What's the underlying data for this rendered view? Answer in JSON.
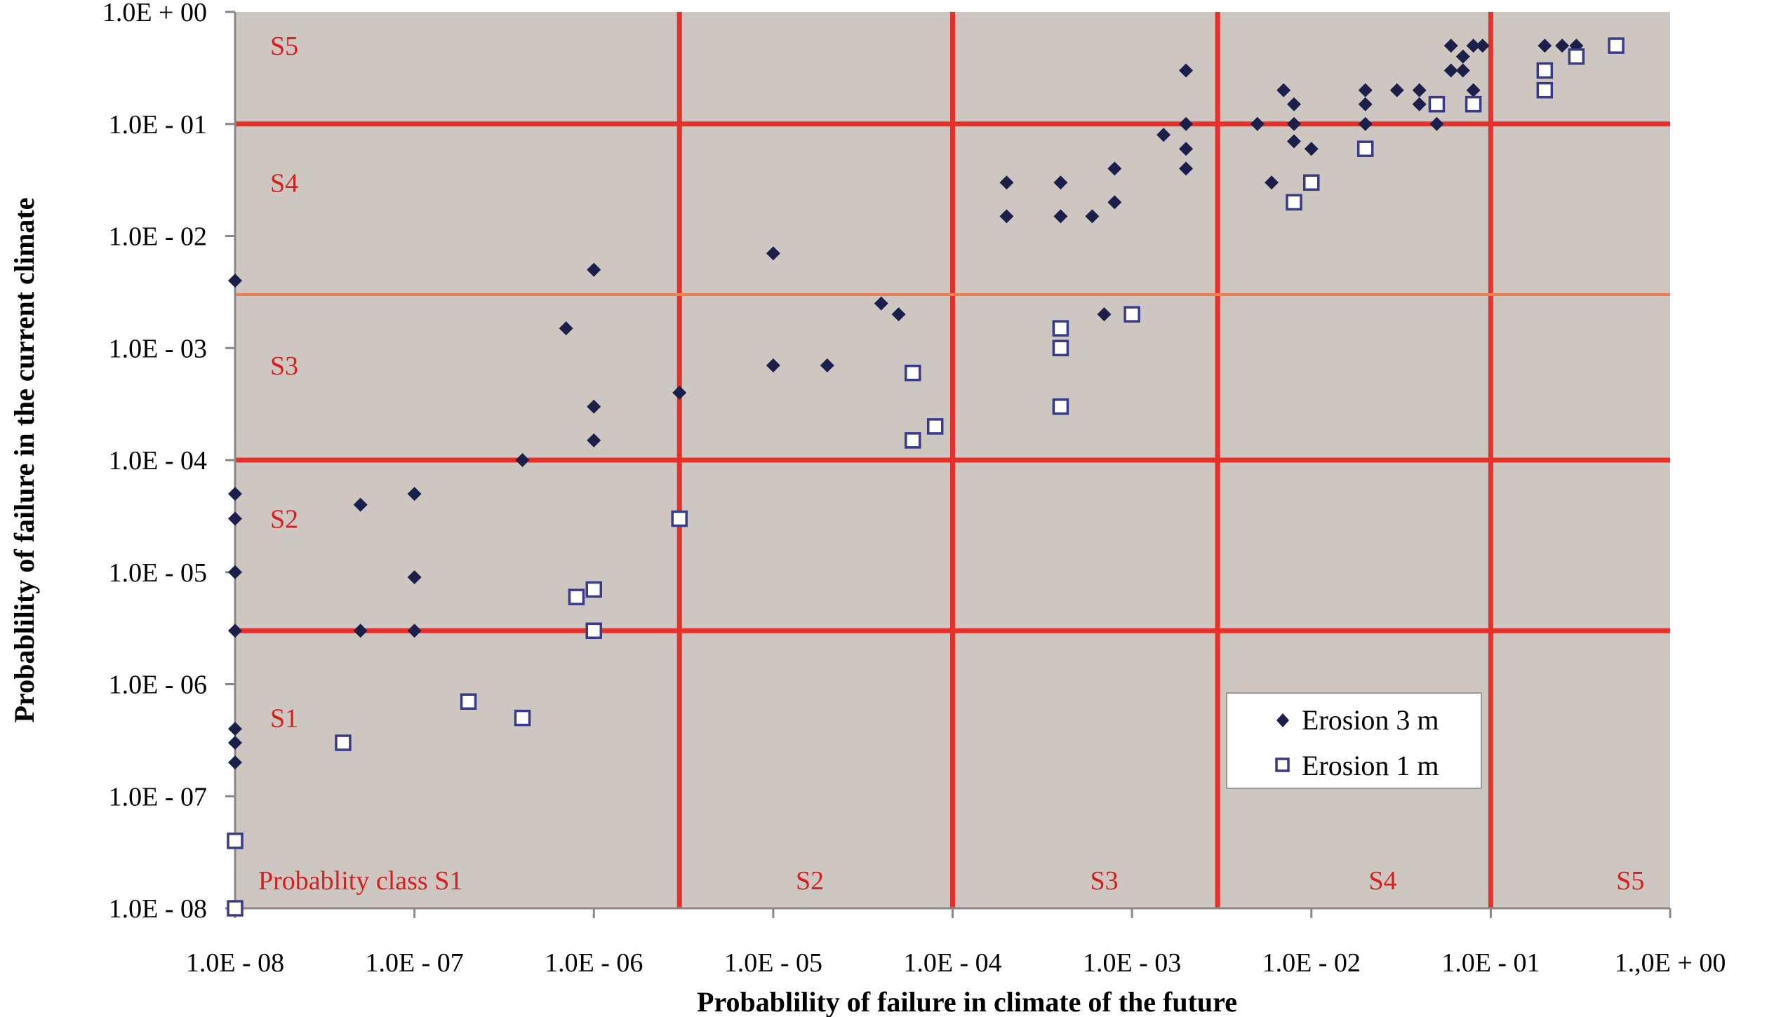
{
  "chart_data": {
    "type": "scatter",
    "xlabel": "Probablility of failure in climate of the future",
    "ylabel": "Probablility of failure in the current climate",
    "x_scale": "log",
    "y_scale": "log",
    "xlim": [
      1e-08,
      1
    ],
    "ylim": [
      1e-08,
      1
    ],
    "grid": false,
    "background_color": "#cdc6c1",
    "class_line_color": "#e8302a",
    "x_tick_labels": [
      "1.0E - 08",
      "1.0E - 07",
      "1.0E - 06",
      "1.0E - 05",
      "1.0E - 04",
      "1.0E - 03",
      "1.0E - 02",
      "1.0E - 01",
      "1.,0E + 00"
    ],
    "y_tick_labels": [
      "1.0E - 08",
      "1.0E - 07",
      "1.0E - 06",
      "1.0E - 05",
      "1.0E - 04",
      "1.0E - 03",
      "1.0E - 02",
      "1.0E - 01",
      "1.0E + 00"
    ],
    "x_class_bounds": [
      3e-06,
      0.0001,
      0.003,
      0.1
    ],
    "y_class_bounds": [
      3e-06,
      0.0001,
      0.003,
      0.1
    ],
    "x_class_labels": [
      {
        "text": "Probablity class S1",
        "x": 5e-08
      },
      {
        "text": "S2",
        "x": 1.6e-05
      },
      {
        "text": "S3",
        "x": 0.0007
      },
      {
        "text": "S4",
        "x": 0.025
      },
      {
        "text": "S5",
        "x": 0.6
      }
    ],
    "y_class_labels": [
      {
        "text": "S5",
        "y": 0.5
      },
      {
        "text": "S4",
        "y": 0.03
      },
      {
        "text": "S3",
        "y": 0.0007
      },
      {
        "text": "S2",
        "y": 3e-05
      },
      {
        "text": "S1",
        "y": 5e-07
      }
    ],
    "legend": {
      "position": "bottom-right",
      "entries": [
        "Erosion 3 m",
        "Erosion 1 m"
      ]
    },
    "series": [
      {
        "name": "Erosion 3 m",
        "marker": "filled-diamond",
        "color": "#1c1f4a",
        "points": [
          [
            1e-08,
            0.004
          ],
          [
            1e-08,
            5e-05
          ],
          [
            1e-08,
            3e-05
          ],
          [
            1e-08,
            1e-05
          ],
          [
            1e-08,
            3e-06
          ],
          [
            1e-08,
            4e-07
          ],
          [
            1e-08,
            3e-07
          ],
          [
            1e-08,
            2e-07
          ],
          [
            5e-08,
            4e-05
          ],
          [
            5e-08,
            3e-06
          ],
          [
            1e-07,
            5e-05
          ],
          [
            1e-07,
            9e-06
          ],
          [
            1e-07,
            3e-06
          ],
          [
            4e-07,
            0.0001
          ],
          [
            7e-07,
            0.0015
          ],
          [
            1e-06,
            0.005
          ],
          [
            1e-06,
            0.0003
          ],
          [
            1e-06,
            0.00015
          ],
          [
            3e-06,
            0.0004
          ],
          [
            1e-05,
            0.007
          ],
          [
            1e-05,
            0.0007
          ],
          [
            2e-05,
            0.0007
          ],
          [
            4e-05,
            0.0025
          ],
          [
            5e-05,
            0.002
          ],
          [
            0.0002,
            0.03
          ],
          [
            0.0002,
            0.015
          ],
          [
            0.0004,
            0.03
          ],
          [
            0.0004,
            0.015
          ],
          [
            0.0006,
            0.015
          ],
          [
            0.0008,
            0.04
          ],
          [
            0.0008,
            0.02
          ],
          [
            0.0007,
            0.002
          ],
          [
            0.0015,
            0.08
          ],
          [
            0.002,
            0.3
          ],
          [
            0.002,
            0.1
          ],
          [
            0.002,
            0.06
          ],
          [
            0.002,
            0.04
          ],
          [
            0.005,
            0.1
          ],
          [
            0.006,
            0.03
          ],
          [
            0.007,
            0.2
          ],
          [
            0.008,
            0.15
          ],
          [
            0.008,
            0.1
          ],
          [
            0.008,
            0.07
          ],
          [
            0.01,
            0.06
          ],
          [
            0.02,
            0.2
          ],
          [
            0.02,
            0.15
          ],
          [
            0.02,
            0.1
          ],
          [
            0.03,
            0.2
          ],
          [
            0.04,
            0.2
          ],
          [
            0.04,
            0.15
          ],
          [
            0.05,
            0.1
          ],
          [
            0.06,
            0.5
          ],
          [
            0.06,
            0.3
          ],
          [
            0.07,
            0.4
          ],
          [
            0.07,
            0.3
          ],
          [
            0.08,
            0.5
          ],
          [
            0.08,
            0.2
          ],
          [
            0.09,
            0.5
          ],
          [
            0.2,
            0.5
          ],
          [
            0.25,
            0.5
          ],
          [
            0.3,
            0.5
          ]
        ]
      },
      {
        "name": "Erosion 1 m",
        "marker": "open-square",
        "color": "#3a3a8c",
        "points": [
          [
            1e-08,
            4e-08
          ],
          [
            1e-08,
            1e-08
          ],
          [
            4e-08,
            3e-07
          ],
          [
            2e-07,
            7e-07
          ],
          [
            4e-07,
            5e-07
          ],
          [
            8e-07,
            6e-06
          ],
          [
            1e-06,
            7e-06
          ],
          [
            1e-06,
            3e-06
          ],
          [
            3e-06,
            3e-05
          ],
          [
            6e-05,
            0.0006
          ],
          [
            6e-05,
            0.00015
          ],
          [
            8e-05,
            0.0002
          ],
          [
            0.0004,
            0.0015
          ],
          [
            0.0004,
            0.001
          ],
          [
            0.0004,
            0.0003
          ],
          [
            0.001,
            0.002
          ],
          [
            0.008,
            0.02
          ],
          [
            0.01,
            0.03
          ],
          [
            0.02,
            0.06
          ],
          [
            0.05,
            0.15
          ],
          [
            0.08,
            0.15
          ],
          [
            0.2,
            0.3
          ],
          [
            0.2,
            0.2
          ],
          [
            0.3,
            0.4
          ],
          [
            0.5,
            0.5
          ]
        ]
      }
    ]
  }
}
